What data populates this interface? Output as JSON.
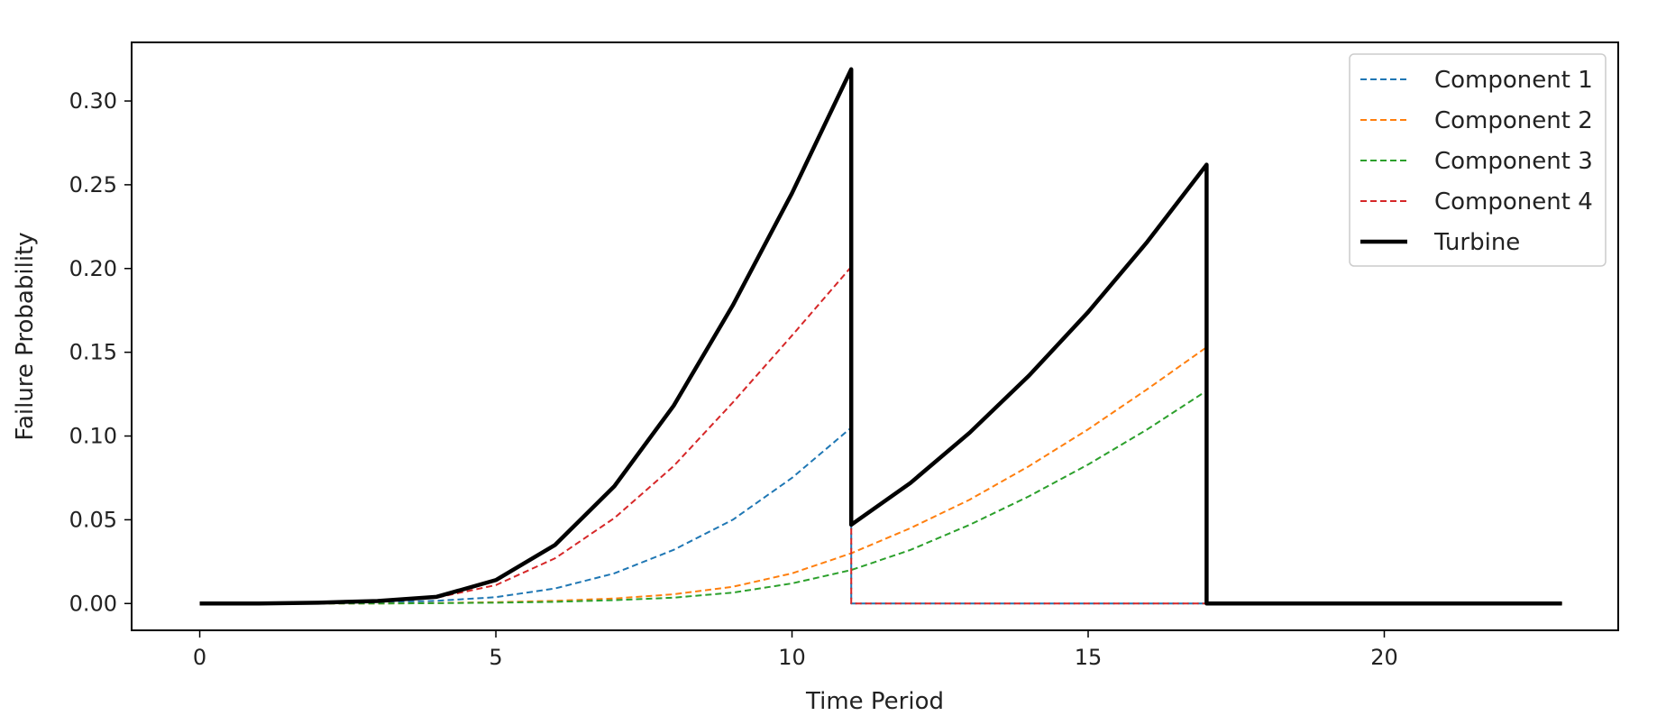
{
  "chart_data": {
    "type": "line",
    "title": "",
    "xlabel": "Time Period",
    "ylabel": "Failure Probability",
    "xlim": [
      -1.15,
      23.95
    ],
    "ylim": [
      -0.016,
      0.335
    ],
    "xticks": [
      0,
      5,
      10,
      15,
      20
    ],
    "xtick_labels": [
      "0",
      "5",
      "10",
      "15",
      "20"
    ],
    "yticks": [
      0.0,
      0.05,
      0.1,
      0.15,
      0.2,
      0.25,
      0.3
    ],
    "ytick_labels": [
      "0.00",
      "0.05",
      "0.10",
      "0.15",
      "0.20",
      "0.25",
      "0.30"
    ],
    "grid": false,
    "legend_position": "top-right",
    "series": [
      {
        "name": "Component 1",
        "color": "#1f77b4",
        "style": "dashed",
        "x": [
          0,
          1,
          2,
          3,
          4,
          5,
          6,
          7,
          8,
          9,
          10,
          11,
          11,
          12,
          13,
          14,
          15,
          16,
          17,
          18,
          19,
          20,
          21,
          22,
          23
        ],
        "y": [
          0,
          0,
          0.0002,
          0.0006,
          0.0016,
          0.0038,
          0.009,
          0.018,
          0.032,
          0.05,
          0.075,
          0.105,
          0,
          0,
          0,
          0,
          0,
          0,
          0,
          0,
          0,
          0,
          0,
          0,
          0
        ]
      },
      {
        "name": "Component 2",
        "color": "#ff7f0e",
        "style": "dashed",
        "x": [
          0,
          1,
          2,
          3,
          4,
          5,
          6,
          7,
          8,
          9,
          10,
          11,
          12,
          13,
          14,
          15,
          16,
          17,
          17,
          18,
          19,
          20,
          21,
          22,
          23
        ],
        "y": [
          0,
          0,
          0,
          0,
          0.0003,
          0.0008,
          0.0016,
          0.003,
          0.0055,
          0.01,
          0.018,
          0.03,
          0.045,
          0.062,
          0.082,
          0.104,
          0.128,
          0.153,
          0,
          0,
          0,
          0,
          0,
          0,
          0
        ]
      },
      {
        "name": "Component 3",
        "color": "#2ca02c",
        "style": "dashed",
        "x": [
          0,
          1,
          2,
          3,
          4,
          5,
          6,
          7,
          8,
          9,
          10,
          11,
          12,
          13,
          14,
          15,
          16,
          17,
          17,
          18,
          19,
          20,
          21,
          22,
          23
        ],
        "y": [
          0,
          0,
          0,
          0,
          0.0002,
          0.0005,
          0.001,
          0.002,
          0.0035,
          0.0065,
          0.012,
          0.02,
          0.032,
          0.047,
          0.064,
          0.083,
          0.104,
          0.127,
          0,
          0,
          0,
          0,
          0,
          0,
          0
        ]
      },
      {
        "name": "Component 4",
        "color": "#d62728",
        "style": "dashed",
        "x": [
          0,
          1,
          2,
          3,
          4,
          5,
          6,
          7,
          8,
          9,
          10,
          11,
          11,
          12,
          13,
          14,
          15,
          16,
          17,
          18,
          19,
          20,
          21,
          22,
          23
        ],
        "y": [
          0,
          0,
          0.0003,
          0.0012,
          0.0035,
          0.011,
          0.027,
          0.051,
          0.082,
          0.12,
          0.16,
          0.201,
          0,
          0,
          0,
          0,
          0,
          0,
          0,
          0,
          0,
          0,
          0,
          0,
          0
        ]
      },
      {
        "name": "Turbine",
        "color": "#000000",
        "style": "solid",
        "x": [
          0,
          1,
          2,
          3,
          4,
          5,
          6,
          7,
          8,
          9,
          10,
          11,
          11,
          12,
          13,
          14,
          15,
          16,
          17,
          17,
          18,
          19,
          20,
          21,
          22,
          23
        ],
        "y": [
          0,
          0,
          0.0005,
          0.0015,
          0.004,
          0.014,
          0.035,
          0.07,
          0.118,
          0.178,
          0.245,
          0.319,
          0.047,
          0.072,
          0.102,
          0.136,
          0.174,
          0.216,
          0.262,
          0,
          0,
          0,
          0,
          0,
          0,
          0
        ]
      }
    ]
  }
}
